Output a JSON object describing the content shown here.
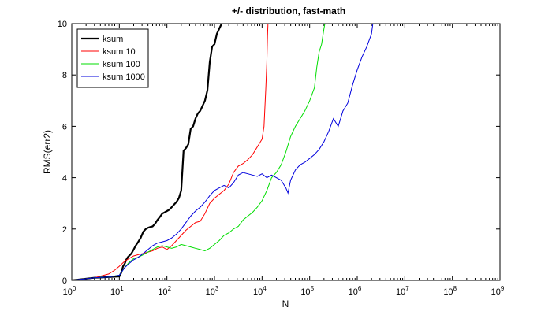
{
  "chart_data": {
    "type": "line",
    "title": "+/- distribution, fast-math",
    "xlabel": "N",
    "ylabel": "RMS(err2)",
    "xscale": "log",
    "xlim": [
      1,
      1000000000
    ],
    "ylim": [
      0,
      10
    ],
    "x_ticks": [
      {
        "base": "10",
        "exp": "0",
        "value": 1
      },
      {
        "base": "10",
        "exp": "1",
        "value": 10
      },
      {
        "base": "10",
        "exp": "2",
        "value": 100
      },
      {
        "base": "10",
        "exp": "3",
        "value": 1000
      },
      {
        "base": "10",
        "exp": "4",
        "value": 10000
      },
      {
        "base": "10",
        "exp": "5",
        "value": 100000
      },
      {
        "base": "10",
        "exp": "6",
        "value": 1000000
      },
      {
        "base": "10",
        "exp": "7",
        "value": 10000000
      },
      {
        "base": "10",
        "exp": "8",
        "value": 100000000
      },
      {
        "base": "10",
        "exp": "9",
        "value": 1000000000
      }
    ],
    "y_ticks": [
      "0",
      "2",
      "4",
      "6",
      "8",
      "10"
    ],
    "grid": false,
    "legend_position": "top-left",
    "series": [
      {
        "name": "ksum",
        "color": "#000000",
        "width": "bold",
        "x": [
          1,
          3,
          6,
          10,
          11,
          12,
          13,
          14,
          15,
          16,
          18,
          20,
          22,
          25,
          28,
          32,
          36,
          40,
          45,
          50,
          56,
          63,
          70,
          80,
          90,
          100,
          112,
          126,
          141,
          158,
          178,
          200,
          224,
          251,
          282,
          316,
          355,
          398,
          447,
          501,
          562,
          631,
          708,
          794,
          891,
          1000,
          1122,
          1259,
          1413,
          1585,
          1778,
          2000
        ],
        "y": [
          0.0,
          0.1,
          0.13,
          0.15,
          0.3,
          0.55,
          0.65,
          0.8,
          0.9,
          0.95,
          1.05,
          1.2,
          1.35,
          1.5,
          1.65,
          1.9,
          2.0,
          2.05,
          2.08,
          2.1,
          2.2,
          2.35,
          2.45,
          2.6,
          2.65,
          2.7,
          2.75,
          2.85,
          2.95,
          3.05,
          3.2,
          3.5,
          5.05,
          5.15,
          5.3,
          5.9,
          6.0,
          6.3,
          6.5,
          6.6,
          6.8,
          7.0,
          7.4,
          8.5,
          9.1,
          9.2,
          9.6,
          9.8,
          10.0,
          10.1,
          10.2,
          10.3
        ]
      },
      {
        "name": "ksum 10",
        "color": "#ff0000",
        "width": "thin",
        "x": [
          1,
          3,
          6,
          8,
          10,
          13,
          16,
          20,
          25,
          32,
          40,
          50,
          63,
          80,
          100,
          126,
          158,
          200,
          251,
          316,
          398,
          501,
          631,
          794,
          1000,
          1259,
          1585,
          2000,
          2512,
          3162,
          3981,
          5012,
          6310,
          7943,
          10000,
          11000,
          12000,
          12590,
          13000,
          13500
        ],
        "y": [
          0.0,
          0.1,
          0.25,
          0.4,
          0.55,
          0.75,
          0.85,
          0.95,
          1.0,
          1.05,
          1.1,
          1.15,
          1.25,
          1.3,
          1.2,
          1.35,
          1.55,
          1.75,
          1.95,
          2.1,
          2.25,
          2.3,
          2.6,
          3.0,
          3.2,
          3.35,
          3.5,
          3.75,
          4.2,
          4.45,
          4.55,
          4.7,
          4.9,
          5.2,
          5.5,
          6.0,
          7.5,
          8.5,
          9.5,
          10.3
        ]
      },
      {
        "name": "ksum 100",
        "color": "#00dd00",
        "width": "thin",
        "x": [
          1,
          3,
          6,
          10,
          13,
          16,
          20,
          25,
          32,
          40,
          50,
          63,
          80,
          100,
          126,
          158,
          200,
          251,
          316,
          398,
          501,
          631,
          794,
          1000,
          1259,
          1585,
          2000,
          2512,
          3162,
          3981,
          5012,
          6310,
          7943,
          10000,
          12589,
          15849,
          19953,
          25119,
          31623,
          39811,
          50119,
          63096,
          79433,
          100000,
          125893,
          141254,
          158489,
          177828,
          199526,
          223872
        ],
        "y": [
          0.0,
          0.1,
          0.13,
          0.2,
          0.5,
          0.7,
          0.85,
          0.9,
          1.0,
          1.1,
          1.2,
          1.3,
          1.35,
          1.3,
          1.25,
          1.3,
          1.4,
          1.35,
          1.3,
          1.25,
          1.2,
          1.15,
          1.25,
          1.4,
          1.55,
          1.75,
          1.85,
          2.0,
          2.1,
          2.35,
          2.5,
          2.65,
          2.85,
          3.1,
          3.5,
          4.0,
          4.2,
          4.5,
          5.0,
          5.6,
          6.0,
          6.3,
          6.6,
          7.0,
          7.5,
          8.3,
          8.9,
          9.2,
          9.8,
          10.3
        ]
      },
      {
        "name": "ksum 1000",
        "color": "#0000dd",
        "width": "thin",
        "x": [
          1,
          3,
          6,
          10,
          13,
          16,
          20,
          25,
          32,
          40,
          50,
          63,
          80,
          100,
          126,
          158,
          200,
          251,
          316,
          398,
          501,
          631,
          794,
          1000,
          1259,
          1585,
          2000,
          2512,
          3162,
          3981,
          5012,
          6310,
          7943,
          10000,
          12589,
          15849,
          19953,
          25119,
          31623,
          35000,
          39811,
          50119,
          63096,
          79433,
          100000,
          125893,
          158489,
          199526,
          251189,
          316228,
          398107,
          501187,
          630957,
          794328,
          1000000,
          1258925,
          1584893,
          1995262,
          2238721
        ],
        "y": [
          0.0,
          0.1,
          0.13,
          0.2,
          0.5,
          0.65,
          0.8,
          0.9,
          1.05,
          1.2,
          1.35,
          1.45,
          1.5,
          1.55,
          1.65,
          1.8,
          2.0,
          2.25,
          2.5,
          2.7,
          2.85,
          3.05,
          3.3,
          3.5,
          3.6,
          3.7,
          3.6,
          3.8,
          4.1,
          4.2,
          4.15,
          4.1,
          4.05,
          4.15,
          4.0,
          4.1,
          4.0,
          3.9,
          3.6,
          3.4,
          3.9,
          4.3,
          4.5,
          4.6,
          4.75,
          4.9,
          5.1,
          5.4,
          5.8,
          6.3,
          6.0,
          6.6,
          6.9,
          7.6,
          8.2,
          8.7,
          9.1,
          9.6,
          10.3
        ]
      }
    ]
  }
}
